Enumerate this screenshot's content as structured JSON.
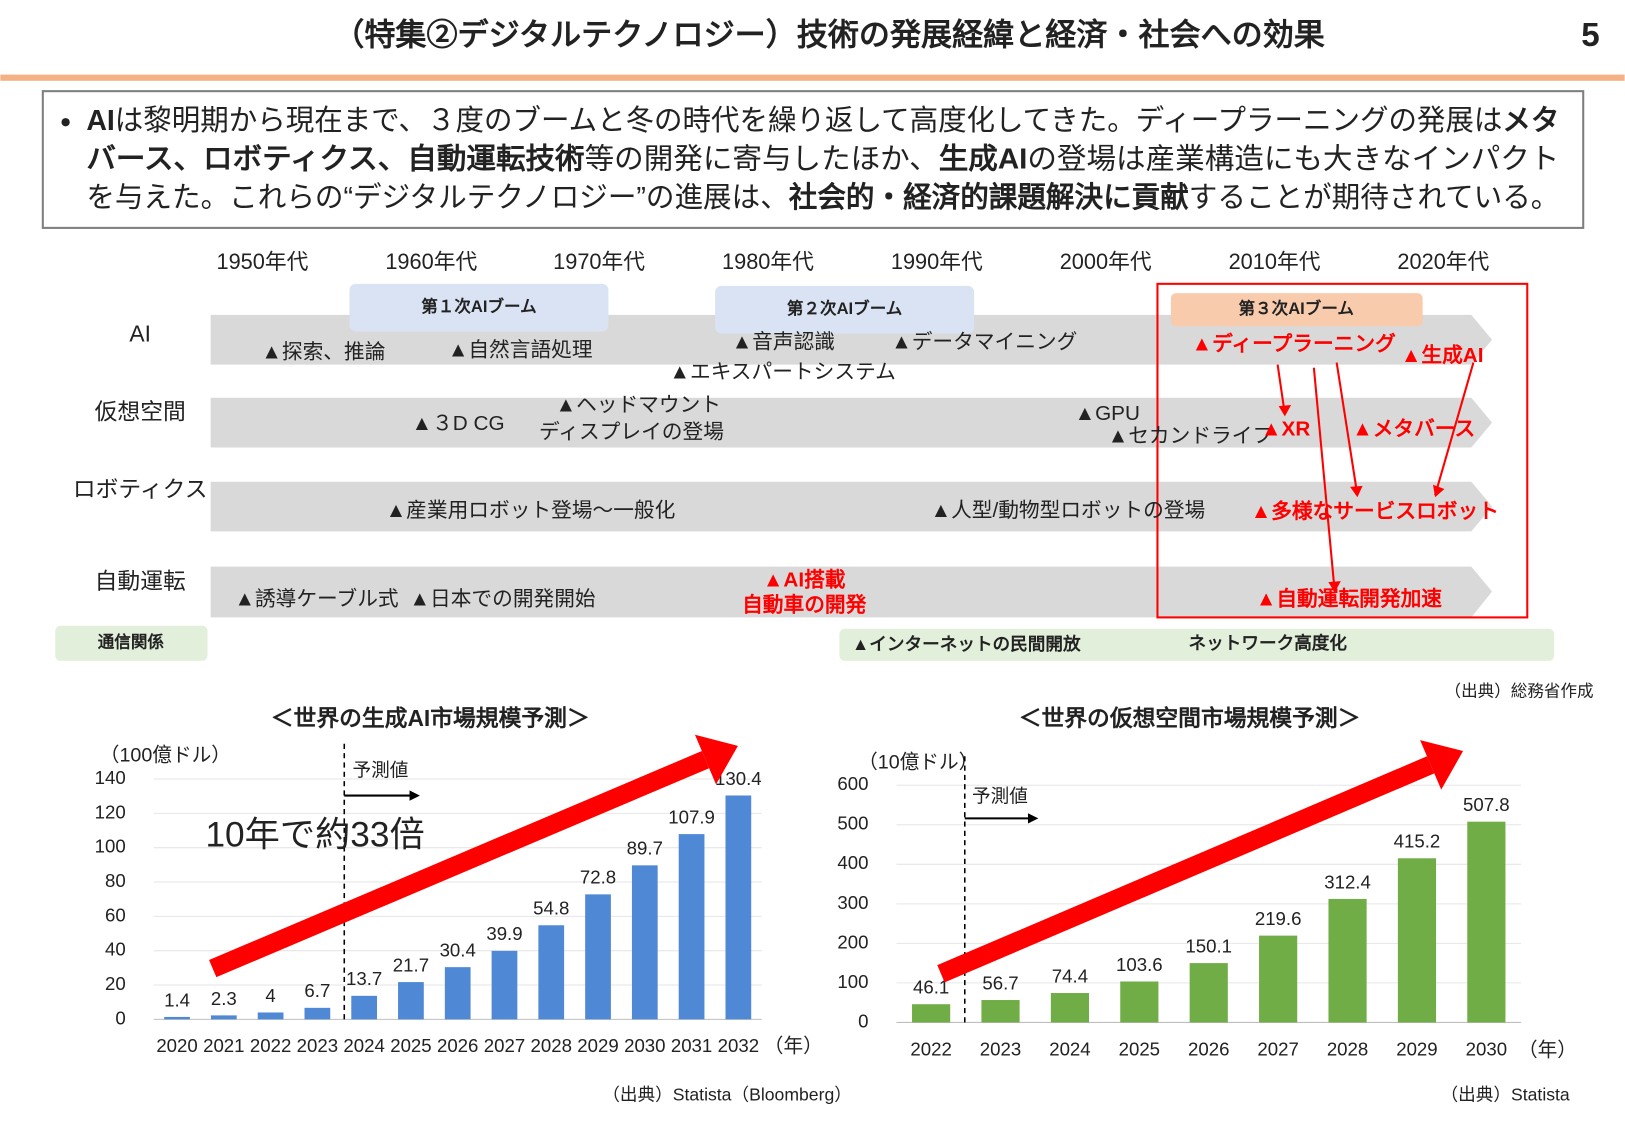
{
  "header": {
    "title": "（特集②デジタルテクノロジー）技術の発展経緯と経済・社会への効果",
    "page": "5"
  },
  "summary": {
    "lines": [
      [
        {
          "text": "AI",
          "bold": true
        },
        {
          "text": "は黎明期から現在まで、３度のブームと冬の時代を繰り返して高度化してきた。ディープラーニングの発展は",
          "bold": false
        },
        {
          "text": "メタ",
          "bold": true
        }
      ],
      [
        {
          "text": "バース、ロボティクス、自動運転技術",
          "bold": true
        },
        {
          "text": "等の開発に寄与したほか、",
          "bold": false
        },
        {
          "text": "生成AI",
          "bold": true
        },
        {
          "text": "の登場は産業構造にも大きなインパクト",
          "bold": false
        }
      ],
      [
        {
          "text": "を与えた。これらの“デジタルテクノロジー”の進展は、",
          "bold": false
        },
        {
          "text": "社会的・経済的課題解決に貢献",
          "bold": true
        },
        {
          "text": "することが期待されている。",
          "bold": false
        }
      ]
    ]
  },
  "timeline": {
    "decades": [
      "1950年代",
      "1960年代",
      "1970年代",
      "1980年代",
      "1990年代",
      "2000年代",
      "2010年代",
      "2020年代"
    ],
    "booms": [
      "第１次AIブーム",
      "第２次AIブーム",
      "第３次AIブーム"
    ],
    "rows": [
      "AI",
      "仮想空間",
      "ロボティクス",
      "自動運転",
      "通信関係"
    ],
    "items": [
      [
        "▲探索、推論"
      ],
      [
        "▲自然言語処理"
      ],
      [
        "▲音声認識"
      ],
      [
        "▲データマイニング"
      ],
      [
        "▲エキスパートシステム"
      ],
      [
        "▲ディープラーニング"
      ],
      [
        "▲生成AI"
      ],
      [
        "▲３D CG"
      ],
      [
        "▲ヘッドマウント",
        "ディスプレイの登場"
      ],
      [
        "▲GPU"
      ],
      [
        "▲セカンドライフ"
      ],
      [
        "▲XR"
      ],
      [
        "▲メタバース"
      ],
      [
        "▲産業用ロボット登場～一般化"
      ],
      [
        "▲人型/動物型ロボットの登場"
      ],
      [
        "▲多様なサービスロボット"
      ],
      [
        "▲誘導ケーブル式"
      ],
      [
        "▲日本での開発開始"
      ],
      [
        "▲AI搭載",
        "自動車の開発"
      ],
      [
        "▲自動運転開発加速"
      ],
      [
        "▲インターネットの民間開放"
      ],
      [
        "ネットワーク高度化"
      ]
    ],
    "source": "（出典）総務省作成"
  },
  "chart_data": [
    {
      "type": "bar",
      "title": "＜世界の生成AI市場規模予測＞",
      "ylabel": "（100億ドル）",
      "xlabel": "（年）",
      "categories": [
        "2020",
        "2021",
        "2022",
        "2023",
        "2024",
        "2025",
        "2026",
        "2027",
        "2028",
        "2029",
        "2030",
        "2031",
        "2032"
      ],
      "values": [
        1.4,
        2.3,
        4,
        6.7,
        13.7,
        21.7,
        30.4,
        39.9,
        54.8,
        72.8,
        89.7,
        107.9,
        130.4
      ],
      "color": "#4f88d4",
      "ylim": [
        0,
        140
      ],
      "yticks": [
        0,
        20,
        40,
        60,
        80,
        100,
        120,
        140
      ],
      "grid": true,
      "annotations": [
        "予測値",
        "10年で約33倍"
      ],
      "source": "（出典）Statista（Bloomberg）"
    },
    {
      "type": "bar",
      "title": "＜世界の仮想空間市場規模予測＞",
      "ylabel": "（10億ドル）",
      "xlabel": "（年）",
      "categories": [
        "2022",
        "2023",
        "2024",
        "2025",
        "2026",
        "2027",
        "2028",
        "2029",
        "2030"
      ],
      "values": [
        46.1,
        56.7,
        74.4,
        103.6,
        150.1,
        219.6,
        312.4,
        415.2,
        507.8
      ],
      "color": "#70ad47",
      "ylim": [
        0,
        600
      ],
      "yticks": [
        0,
        100,
        200,
        300,
        400,
        500,
        600
      ],
      "grid": true,
      "annotations": [
        "予測値"
      ],
      "source": "（出典）Statista"
    }
  ]
}
